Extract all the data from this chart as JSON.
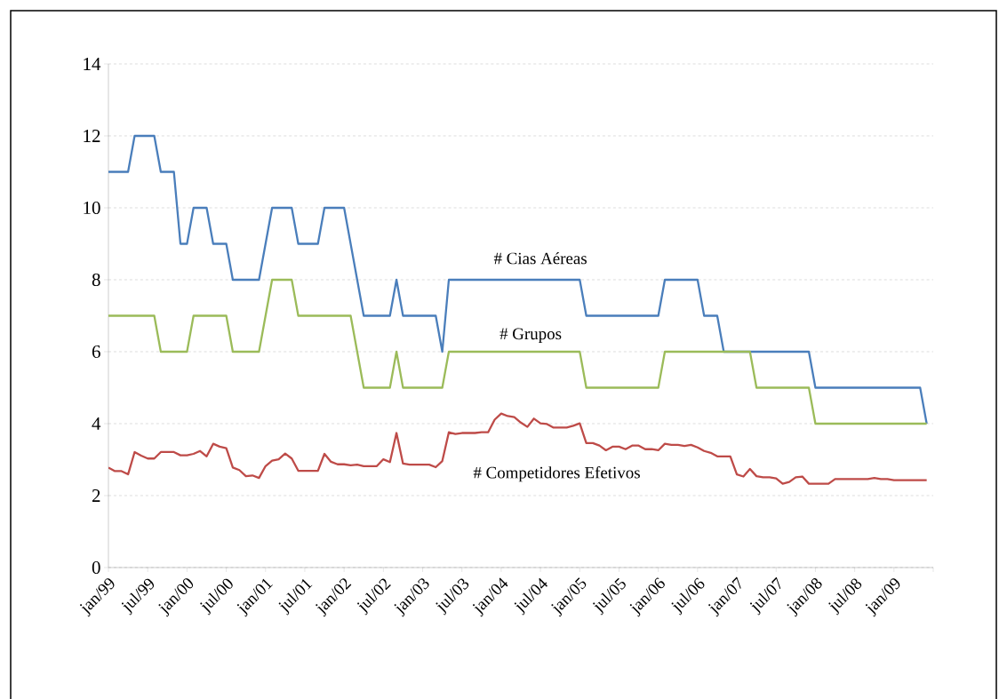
{
  "chart_data": {
    "type": "line",
    "ylim": [
      0,
      14
    ],
    "yticks": [
      0,
      2,
      4,
      6,
      8,
      10,
      12,
      14
    ],
    "grid": "y",
    "legend": false,
    "marker": "none",
    "line_style": "solid",
    "xlim": [
      "1999-01",
      "2009-07"
    ],
    "xticks": [
      {
        "value": "1999-01",
        "label": "jan/99"
      },
      {
        "value": "1999-07",
        "label": "jul/99"
      },
      {
        "value": "2000-01",
        "label": "jan/00"
      },
      {
        "value": "2000-07",
        "label": "jul/00"
      },
      {
        "value": "2001-01",
        "label": "jan/01"
      },
      {
        "value": "2001-07",
        "label": "jul/01"
      },
      {
        "value": "2002-01",
        "label": "jan/02"
      },
      {
        "value": "2002-07",
        "label": "jul/02"
      },
      {
        "value": "2003-01",
        "label": "jan/03"
      },
      {
        "value": "2003-07",
        "label": "jul/03"
      },
      {
        "value": "2004-01",
        "label": "jan/04"
      },
      {
        "value": "2004-07",
        "label": "jul/04"
      },
      {
        "value": "2005-01",
        "label": "jan/05"
      },
      {
        "value": "2005-07",
        "label": "jul/05"
      },
      {
        "value": "2006-01",
        "label": "jan/06"
      },
      {
        "value": "2006-07",
        "label": "jul/06"
      },
      {
        "value": "2007-01",
        "label": "jan/07"
      },
      {
        "value": "2007-07",
        "label": "jul/07"
      },
      {
        "value": "2008-01",
        "label": "jan/08"
      },
      {
        "value": "2008-07",
        "label": "jul/08"
      },
      {
        "value": "2009-01",
        "label": "jan/09"
      },
      {
        "value": "2009-07",
        "label": null
      }
    ],
    "x": [
      "1999-01",
      "1999-02",
      "1999-03",
      "1999-04",
      "1999-05",
      "1999-06",
      "1999-07",
      "1999-08",
      "1999-09",
      "1999-10",
      "1999-11",
      "1999-12",
      "2000-01",
      "2000-02",
      "2000-03",
      "2000-04",
      "2000-05",
      "2000-06",
      "2000-07",
      "2000-08",
      "2000-09",
      "2000-10",
      "2000-11",
      "2000-12",
      "2001-01",
      "2001-02",
      "2001-03",
      "2001-04",
      "2001-05",
      "2001-06",
      "2001-07",
      "2001-08",
      "2001-09",
      "2001-10",
      "2001-11",
      "2001-12",
      "2002-01",
      "2002-02",
      "2002-03",
      "2002-04",
      "2002-05",
      "2002-06",
      "2002-07",
      "2002-08",
      "2002-09",
      "2002-10",
      "2002-11",
      "2002-12",
      "2003-01",
      "2003-02",
      "2003-03",
      "2003-04",
      "2003-05",
      "2003-06",
      "2003-07",
      "2003-08",
      "2003-09",
      "2003-10",
      "2003-11",
      "2003-12",
      "2004-01",
      "2004-02",
      "2004-03",
      "2004-04",
      "2004-05",
      "2004-06",
      "2004-07",
      "2004-08",
      "2004-09",
      "2004-10",
      "2004-11",
      "2004-12",
      "2005-01",
      "2005-02",
      "2005-03",
      "2005-04",
      "2005-05",
      "2005-06",
      "2005-07",
      "2005-08",
      "2005-09",
      "2005-10",
      "2005-11",
      "2005-12",
      "2006-01",
      "2006-02",
      "2006-03",
      "2006-04",
      "2006-05",
      "2006-06",
      "2006-07",
      "2006-08",
      "2006-09",
      "2006-10",
      "2006-11",
      "2006-12",
      "2007-01",
      "2007-02",
      "2007-03",
      "2007-04",
      "2007-05",
      "2007-06",
      "2007-07",
      "2007-08",
      "2007-09",
      "2007-10",
      "2007-11",
      "2007-12",
      "2008-01",
      "2008-02",
      "2008-03",
      "2008-04",
      "2008-05",
      "2008-06",
      "2008-07",
      "2008-08",
      "2008-09",
      "2008-10",
      "2008-11",
      "2008-12",
      "2009-01",
      "2009-02",
      "2009-03",
      "2009-04",
      "2009-05",
      "2009-06"
    ],
    "series": [
      {
        "name": "# Cias Aéreas",
        "color": "#4a7ebb",
        "x": [
          "1999-01",
          "1999-04",
          "1999-05",
          "1999-08",
          "1999-09",
          "1999-11",
          "1999-12",
          "2000-01",
          "2000-02",
          "2000-04",
          "2000-05",
          "2000-07",
          "2000-08",
          "2000-12",
          "2001-02",
          "2001-05",
          "2001-06",
          "2001-09",
          "2001-10",
          "2002-01",
          "2002-04",
          "2002-08",
          "2002-09",
          "2002-10",
          "2003-03",
          "2003-04",
          "2003-05",
          "2005-01",
          "2005-02",
          "2006-01",
          "2006-02",
          "2006-07",
          "2006-08",
          "2006-10",
          "2006-11",
          "2007-12",
          "2008-01",
          "2009-05",
          "2009-06"
        ],
        "values": [
          11,
          11,
          12,
          12,
          11,
          11,
          9,
          9,
          10,
          10,
          9,
          9,
          8,
          8,
          10,
          10,
          9,
          9,
          10,
          10,
          7,
          7,
          8,
          7,
          7,
          6,
          8,
          8,
          7,
          7,
          8,
          8,
          7,
          7,
          6,
          6,
          5,
          5,
          4
        ]
      },
      {
        "name": "# Grupos",
        "color": "#9bbb59",
        "x": [
          "1999-01",
          "1999-08",
          "1999-09",
          "2000-01",
          "2000-02",
          "2000-07",
          "2000-08",
          "2000-12",
          "2001-02",
          "2001-05",
          "2001-06",
          "2002-02",
          "2002-04",
          "2002-08",
          "2002-09",
          "2002-10",
          "2003-04",
          "2003-05",
          "2005-01",
          "2005-02",
          "2006-01",
          "2006-02",
          "2007-03",
          "2007-04",
          "2007-12",
          "2008-01",
          "2009-06"
        ],
        "values": [
          7,
          7,
          6,
          6,
          7,
          7,
          6,
          6,
          8,
          8,
          7,
          7,
          5,
          5,
          6,
          5,
          5,
          6,
          6,
          5,
          5,
          6,
          6,
          5,
          5,
          4,
          4
        ]
      },
      {
        "name": "# Competidores Efetivos",
        "color": "#be4b48",
        "values": [
          2.78,
          2.68,
          2.68,
          2.59,
          3.21,
          3.11,
          3.03,
          3.03,
          3.21,
          3.21,
          3.21,
          3.12,
          3.12,
          3.16,
          3.24,
          3.09,
          3.44,
          3.36,
          3.32,
          2.78,
          2.71,
          2.54,
          2.56,
          2.49,
          2.82,
          2.97,
          3.01,
          3.17,
          3.03,
          2.69,
          2.69,
          2.69,
          2.69,
          3.16,
          2.94,
          2.87,
          2.87,
          2.84,
          2.86,
          2.82,
          2.82,
          2.82,
          3.01,
          2.93,
          3.74,
          2.89,
          2.86,
          2.86,
          2.86,
          2.86,
          2.79,
          2.96,
          3.76,
          3.71,
          3.74,
          3.74,
          3.74,
          3.76,
          3.76,
          4.11,
          4.28,
          4.21,
          4.18,
          4.03,
          3.91,
          4.14,
          4.01,
          3.99,
          3.89,
          3.89,
          3.89,
          3.94,
          4.01,
          3.46,
          3.46,
          3.39,
          3.26,
          3.36,
          3.36,
          3.29,
          3.39,
          3.39,
          3.29,
          3.29,
          3.26,
          3.44,
          3.41,
          3.41,
          3.38,
          3.41,
          3.34,
          3.24,
          3.19,
          3.09,
          3.09,
          3.09,
          2.59,
          2.53,
          2.74,
          2.54,
          2.51,
          2.51,
          2.48,
          2.33,
          2.38,
          2.51,
          2.53,
          2.33,
          2.33,
          2.33,
          2.33,
          2.46,
          2.46,
          2.46,
          2.46,
          2.46,
          2.46,
          2.49,
          2.46,
          2.46,
          2.43,
          2.43,
          2.43,
          2.43,
          2.43,
          2.43
        ]
      }
    ]
  }
}
